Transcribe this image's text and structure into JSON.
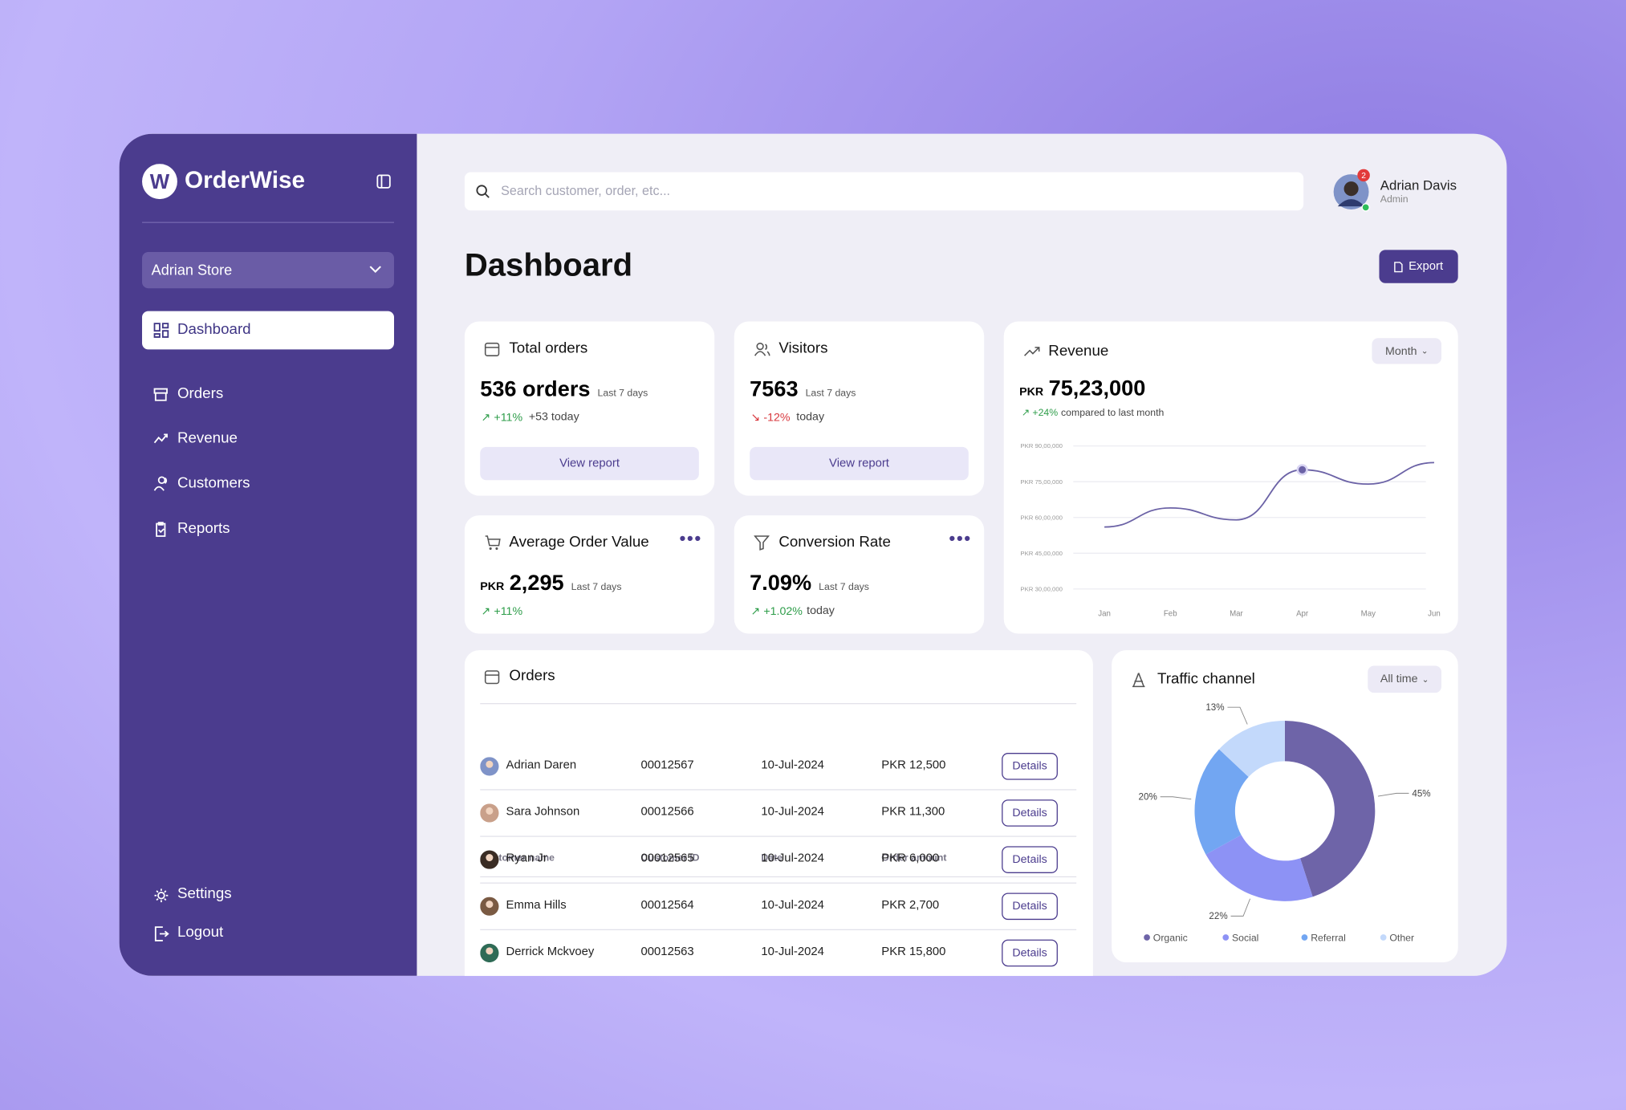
{
  "sidebar": {
    "brand": "OrderWise",
    "store": "Adrian Store",
    "nav": [
      "Dashboard",
      "Orders",
      "Revenue",
      "Customers",
      "Reports"
    ],
    "bottom_nav": [
      "Settings",
      "Logout"
    ]
  },
  "topbar": {
    "search_placeholder": "Search customer, order, etc...",
    "user_name": "Adrian Davis",
    "user_role": "Admin",
    "notifications": 2
  },
  "page": {
    "title": "Dashboard",
    "export": "Export"
  },
  "stats": {
    "total_orders": {
      "title": "Total orders",
      "value": "536 orders",
      "period": "Last 7 days",
      "change": "+11%",
      "note": "+53 today",
      "button": "View report"
    },
    "visitors": {
      "title": "Visitors",
      "value": "7563",
      "period": "Last 7 days",
      "change": "-12%",
      "note": "today",
      "button": "View report"
    },
    "average_order_value": {
      "title": "Average Order Value",
      "currency": "PKR",
      "value": "2,295",
      "period": "Last 7 days",
      "change": "+11%"
    },
    "conversion_rate": {
      "title": "Conversion Rate",
      "value": "7.09%",
      "period": "Last 7 days",
      "change": "+1.02%",
      "note": "today"
    }
  },
  "revenue": {
    "title": "Revenue",
    "filter": "Month",
    "currency": "PKR",
    "value": "75,23,000",
    "change": "+24%",
    "note": "compared to last month",
    "chart": {
      "type": "line",
      "categories": [
        "Jan",
        "Feb",
        "Mar",
        "Apr",
        "May",
        "Jun"
      ],
      "values": [
        5600000,
        6400000,
        5900000,
        8000000,
        7400000,
        8300000
      ],
      "color": "#6b62a6",
      "marker_index": 3,
      "ylim": [
        3000000,
        9000000
      ],
      "yticks": [
        {
          "value": 3000000,
          "label": "PKR 30,00,000"
        },
        {
          "value": 4500000,
          "label": "PKR 45,00,000"
        },
        {
          "value": 6000000,
          "label": "PKR 60,00,000"
        },
        {
          "value": 7500000,
          "label": "PKR 75,00,000"
        },
        {
          "value": 9000000,
          "label": "PKR 90,00,000"
        }
      ],
      "grid": true
    }
  },
  "orders": {
    "title": "Orders",
    "columns": [
      "Customer name",
      "Customer ID",
      "Date",
      "Order amount"
    ],
    "rows": [
      [
        "Adrian Daren",
        "00012567",
        "10-Jul-2024",
        "PKR 12,500",
        "Details"
      ],
      [
        "Sara Johnson",
        "00012566",
        "10-Jul-2024",
        "PKR 11,300",
        "Details"
      ],
      [
        "Ryan Jr",
        "00012565",
        "10-Jul-2024",
        "PKR 6,000",
        "Details"
      ],
      [
        "Emma Hills",
        "00012564",
        "10-Jul-2024",
        "PKR 2,700",
        "Details"
      ],
      [
        "Derrick Mckvoey",
        "00012563",
        "10-Jul-2024",
        "PKR 15,800",
        "Details"
      ]
    ]
  },
  "traffic": {
    "title": "Traffic channel",
    "filter": "All time",
    "chart": {
      "type": "pie",
      "categories": [
        "Organic",
        "Social",
        "Referral",
        "Other"
      ],
      "values": [
        45,
        22,
        20,
        13
      ],
      "value_labels": [
        "45%",
        "22%",
        "20%",
        "13%"
      ],
      "colors": [
        "#6e64a8",
        "#8d92f5",
        "#72a6f2",
        "#c3d9fb"
      ],
      "legend": "bottom"
    }
  }
}
